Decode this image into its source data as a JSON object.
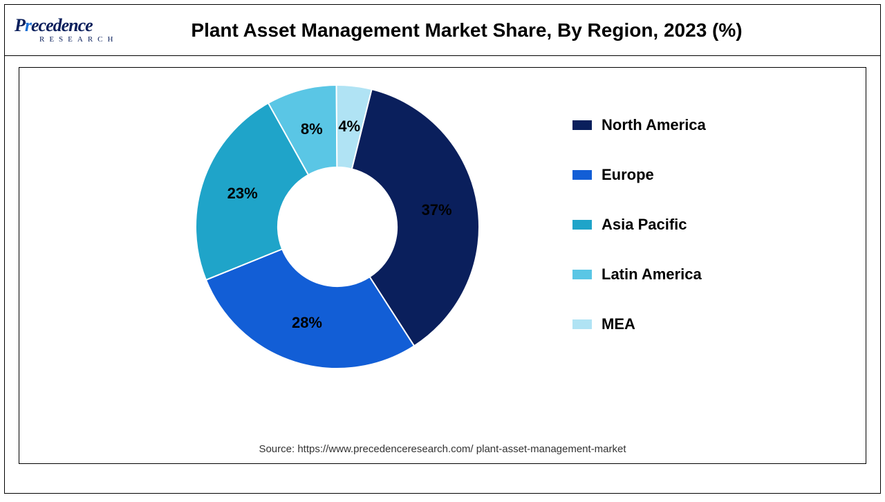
{
  "logo": {
    "line1_prefix": "P",
    "line1_accent": "r",
    "line1_rest": "ecedence",
    "line2": "RESEARCH"
  },
  "chart": {
    "type": "donut",
    "title": "Plant Asset Management Market Share, By Region, 2023 (%)",
    "background_color": "#ffffff",
    "border_color": "#000000",
    "title_fontsize": 28,
    "label_fontsize": 22,
    "legend_fontsize": 22,
    "inner_radius_ratio": 0.42,
    "slices": [
      {
        "label": "North America",
        "value": 37,
        "color": "#0a1f5c"
      },
      {
        "label": "Europe",
        "value": 28,
        "color": "#125ed6"
      },
      {
        "label": "Asia Pacific",
        "value": 23,
        "color": "#1fa4c9"
      },
      {
        "label": "Latin America",
        "value": 8,
        "color": "#5ac6e5"
      },
      {
        "label": "MEA",
        "value": 4,
        "color": "#b0e3f4"
      }
    ],
    "start_angle_deg": -76
  },
  "source": "Source: https://www.precedenceresearch.com/ plant-asset-management-market"
}
